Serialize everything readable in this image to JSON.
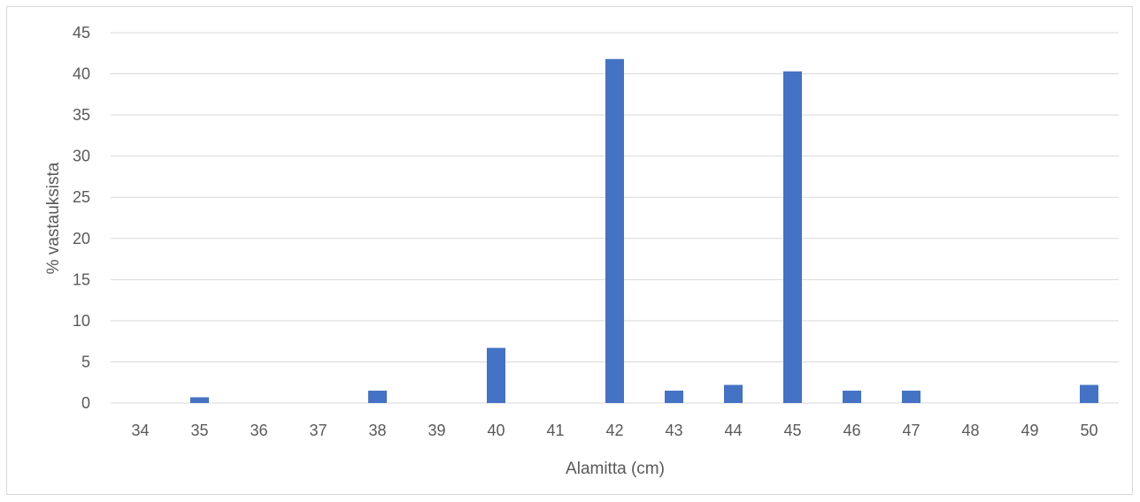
{
  "chart_data": {
    "type": "bar",
    "title": "",
    "xlabel": "Alamitta (cm)",
    "ylabel": "% vastauksista",
    "ylim": [
      0,
      45
    ],
    "yticks": [
      "0",
      "5",
      "10",
      "15",
      "20",
      "25",
      "30",
      "35",
      "40",
      "45"
    ],
    "categories": [
      "34",
      "35",
      "36",
      "37",
      "38",
      "39",
      "40",
      "41",
      "42",
      "43",
      "44",
      "45",
      "46",
      "47",
      "48",
      "49",
      "50"
    ],
    "values": [
      0,
      0.7,
      0,
      0,
      1.5,
      0,
      6.7,
      0,
      41.8,
      1.5,
      2.2,
      40.3,
      1.5,
      1.5,
      0,
      0,
      2.2
    ],
    "grid": true,
    "legend": "none",
    "bar_color": "#4472c4",
    "grid_color": "#d9d9d9",
    "text_color": "#595959"
  }
}
